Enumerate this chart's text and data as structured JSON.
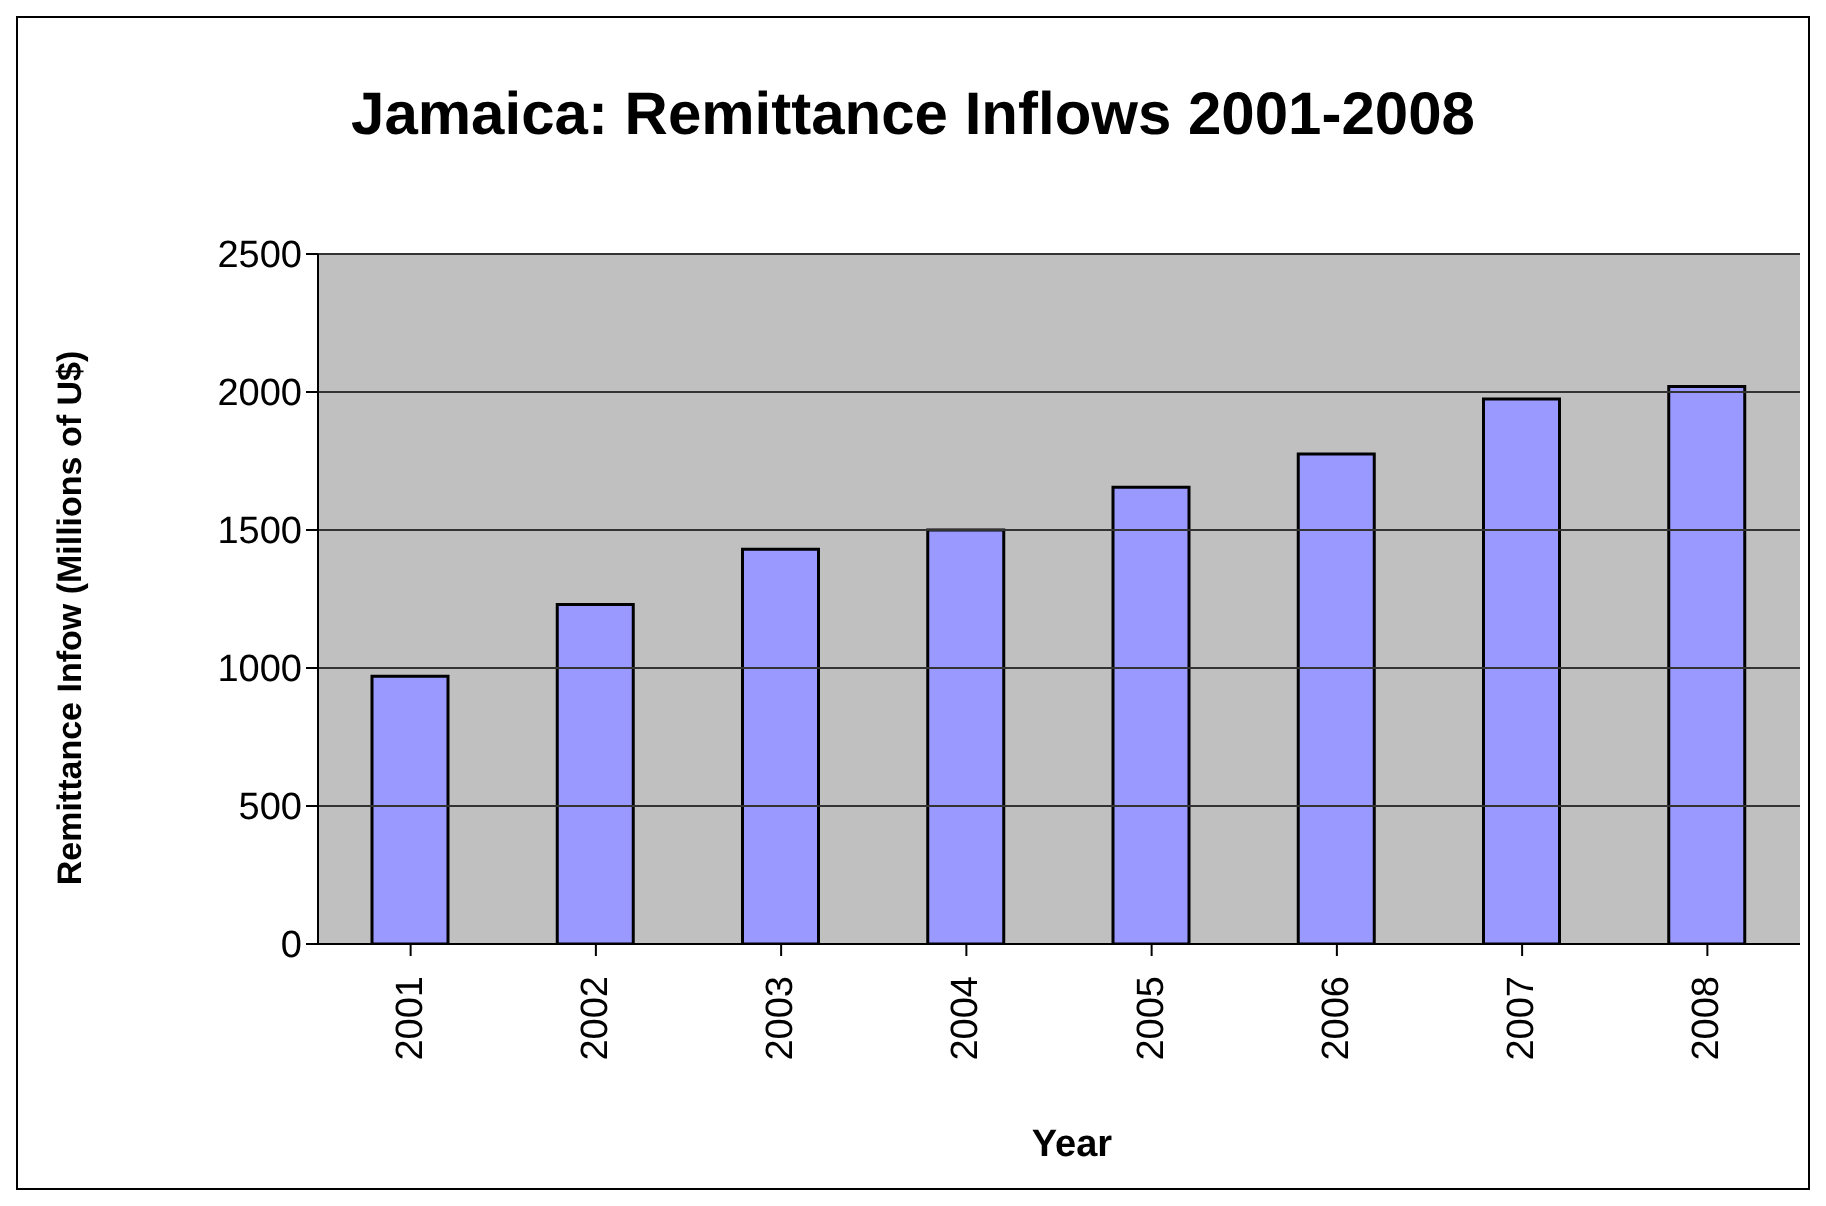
{
  "chart_data": {
    "type": "bar",
    "title": "Jamaica: Remittance Inflows 2001-2008",
    "xlabel": "Year",
    "ylabel": "Remittance Infow (Millions of U$)",
    "categories": [
      "2001",
      "2002",
      "2003",
      "2004",
      "2005",
      "2006",
      "2007",
      "2008"
    ],
    "values": [
      970,
      1230,
      1430,
      1500,
      1655,
      1775,
      1975,
      2020
    ],
    "color": "#9999ff",
    "ylim": [
      0,
      2500
    ],
    "yticks": [
      0,
      500,
      1000,
      1500,
      2000,
      2500
    ],
    "grid": "y"
  }
}
